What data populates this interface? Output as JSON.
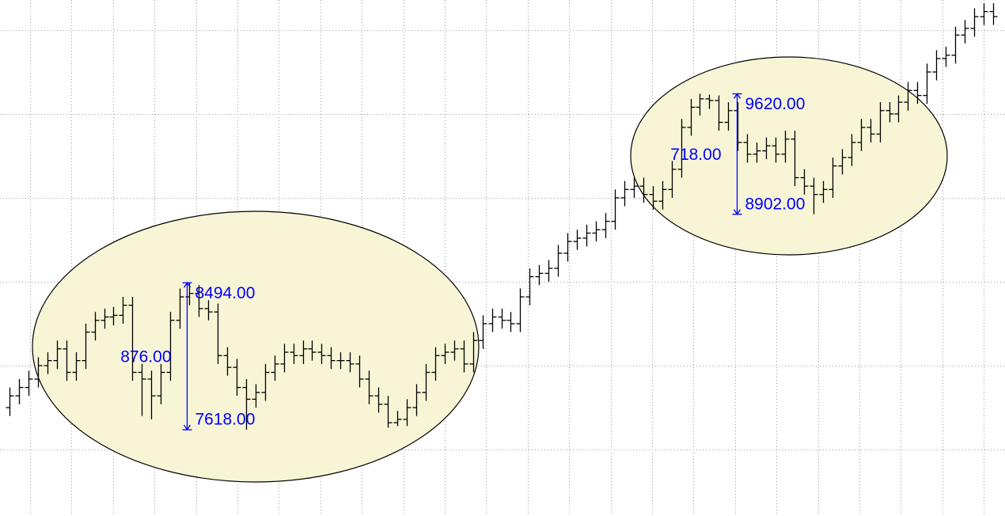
{
  "chart_data": {
    "type": "ohlc",
    "color": "#000000",
    "grid": true,
    "ylim": [
      7104,
      10179
    ],
    "yticks": [
      7500,
      8000,
      8500,
      9000,
      9500,
      10000
    ],
    "open": [
      7750,
      7820,
      7870,
      7920,
      8000,
      8030,
      8100,
      7960,
      8030,
      8200,
      8270,
      8290,
      8300,
      8360,
      7960,
      7920,
      7820,
      7960,
      8270,
      8410,
      8430,
      8340,
      8320,
      8060,
      7990,
      7870,
      7800,
      7840,
      7960,
      8010,
      8080,
      8060,
      8100,
      8080,
      8060,
      8030,
      8030,
      8010,
      7920,
      7820,
      7770,
      7660,
      7680,
      7750,
      7840,
      7960,
      8060,
      8080,
      8100,
      8010,
      8150,
      8250,
      8290,
      8270,
      8250,
      8410,
      8530,
      8550,
      8580,
      8670,
      8740,
      8760,
      8790,
      8810,
      8860,
      9000,
      9050,
      9070,
      9020,
      8980,
      9050,
      9170,
      9420,
      9540,
      9590,
      9580,
      9450,
      9520,
      9330,
      9260,
      9280,
      9310,
      9260,
      9350,
      9120,
      9070,
      9020,
      9050,
      9190,
      9240,
      9330,
      9420,
      9380,
      9520,
      9500,
      9570,
      9640,
      9610,
      9750,
      9830,
      9850,
      9970,
      10010,
      10080,
      10110
    ],
    "high": [
      7870,
      7920,
      7970,
      8050,
      8080,
      8150,
      8150,
      8080,
      8250,
      8320,
      8340,
      8350,
      8410,
      8410,
      8010,
      7970,
      8010,
      8320,
      8460,
      8494,
      8480,
      8390,
      8370,
      8110,
      8040,
      7920,
      7890,
      8010,
      8060,
      8130,
      8130,
      8150,
      8150,
      8130,
      8110,
      8080,
      8080,
      8060,
      7970,
      7870,
      7820,
      7730,
      7800,
      7890,
      8010,
      8110,
      8130,
      8150,
      8150,
      8200,
      8300,
      8340,
      8340,
      8320,
      8460,
      8580,
      8600,
      8630,
      8720,
      8790,
      8810,
      8840,
      8860,
      8910,
      9050,
      9100,
      9120,
      9120,
      9070,
      9100,
      9220,
      9470,
      9590,
      9620,
      9615,
      9610,
      9570,
      9570,
      9380,
      9330,
      9360,
      9360,
      9400,
      9400,
      9170,
      9120,
      9100,
      9240,
      9290,
      9380,
      9470,
      9470,
      9570,
      9570,
      9610,
      9690,
      9690,
      9800,
      9880,
      9900,
      10020,
      10060,
      10130,
      10160,
      10160
    ],
    "low": [
      7700,
      7770,
      7820,
      7870,
      7950,
      7980,
      7910,
      7910,
      7980,
      8150,
      8220,
      8240,
      8250,
      7910,
      7700,
      7680,
      7770,
      7910,
      8220,
      8360,
      8290,
      8270,
      8010,
      7940,
      7820,
      7618,
      7750,
      7790,
      7910,
      7960,
      8010,
      8010,
      8030,
      8010,
      7980,
      7980,
      7960,
      7870,
      7770,
      7720,
      7630,
      7640,
      7640,
      7700,
      7790,
      7910,
      8010,
      8030,
      7960,
      7960,
      8100,
      8200,
      8220,
      8200,
      8200,
      8360,
      8480,
      8500,
      8530,
      8620,
      8690,
      8710,
      8740,
      8760,
      8810,
      8950,
      9000,
      8970,
      8930,
      8930,
      9000,
      9120,
      9370,
      9490,
      9530,
      9400,
      9400,
      9280,
      9210,
      9210,
      9230,
      9210,
      9210,
      9070,
      9020,
      8902,
      8970,
      9000,
      9140,
      9190,
      9280,
      9330,
      9330,
      9450,
      9450,
      9520,
      9560,
      9560,
      9700,
      9780,
      9800,
      9920,
      9960,
      10030,
      10030
    ],
    "close": [
      7820,
      7870,
      7920,
      8000,
      8030,
      8100,
      7960,
      8030,
      8200,
      8270,
      8290,
      8300,
      8360,
      7960,
      7920,
      7820,
      7960,
      8270,
      8410,
      8430,
      8340,
      8320,
      8060,
      7990,
      7870,
      7800,
      7840,
      7960,
      8010,
      8080,
      8060,
      8100,
      8080,
      8060,
      8030,
      8030,
      8010,
      7920,
      7820,
      7770,
      7660,
      7680,
      7750,
      7840,
      7960,
      8060,
      8080,
      8100,
      8010,
      8150,
      8250,
      8290,
      8270,
      8250,
      8410,
      8530,
      8550,
      8580,
      8670,
      8740,
      8760,
      8790,
      8810,
      8860,
      9000,
      9050,
      9070,
      9020,
      8980,
      9050,
      9170,
      9420,
      9540,
      9590,
      9580,
      9450,
      9520,
      9330,
      9260,
      9280,
      9310,
      9260,
      9350,
      9120,
      9070,
      9020,
      9050,
      9190,
      9240,
      9330,
      9420,
      9380,
      9520,
      9500,
      9570,
      9640,
      9610,
      9750,
      9830,
      9850,
      9970,
      10010,
      10080,
      10110,
      10080
    ],
    "annotation_color": "#0000ff",
    "annotations": [
      {
        "high": {
          "value": 8494,
          "label": "8494.00"
        },
        "low": {
          "value": 7618,
          "label": "7618.00"
        },
        "range": {
          "value": 876,
          "label": "876.00"
        }
      },
      {
        "high": {
          "value": 9620,
          "label": "9620.00"
        },
        "low": {
          "value": 8902,
          "label": "8902.00"
        },
        "range": {
          "value": 718,
          "label": "718.00"
        }
      }
    ]
  }
}
